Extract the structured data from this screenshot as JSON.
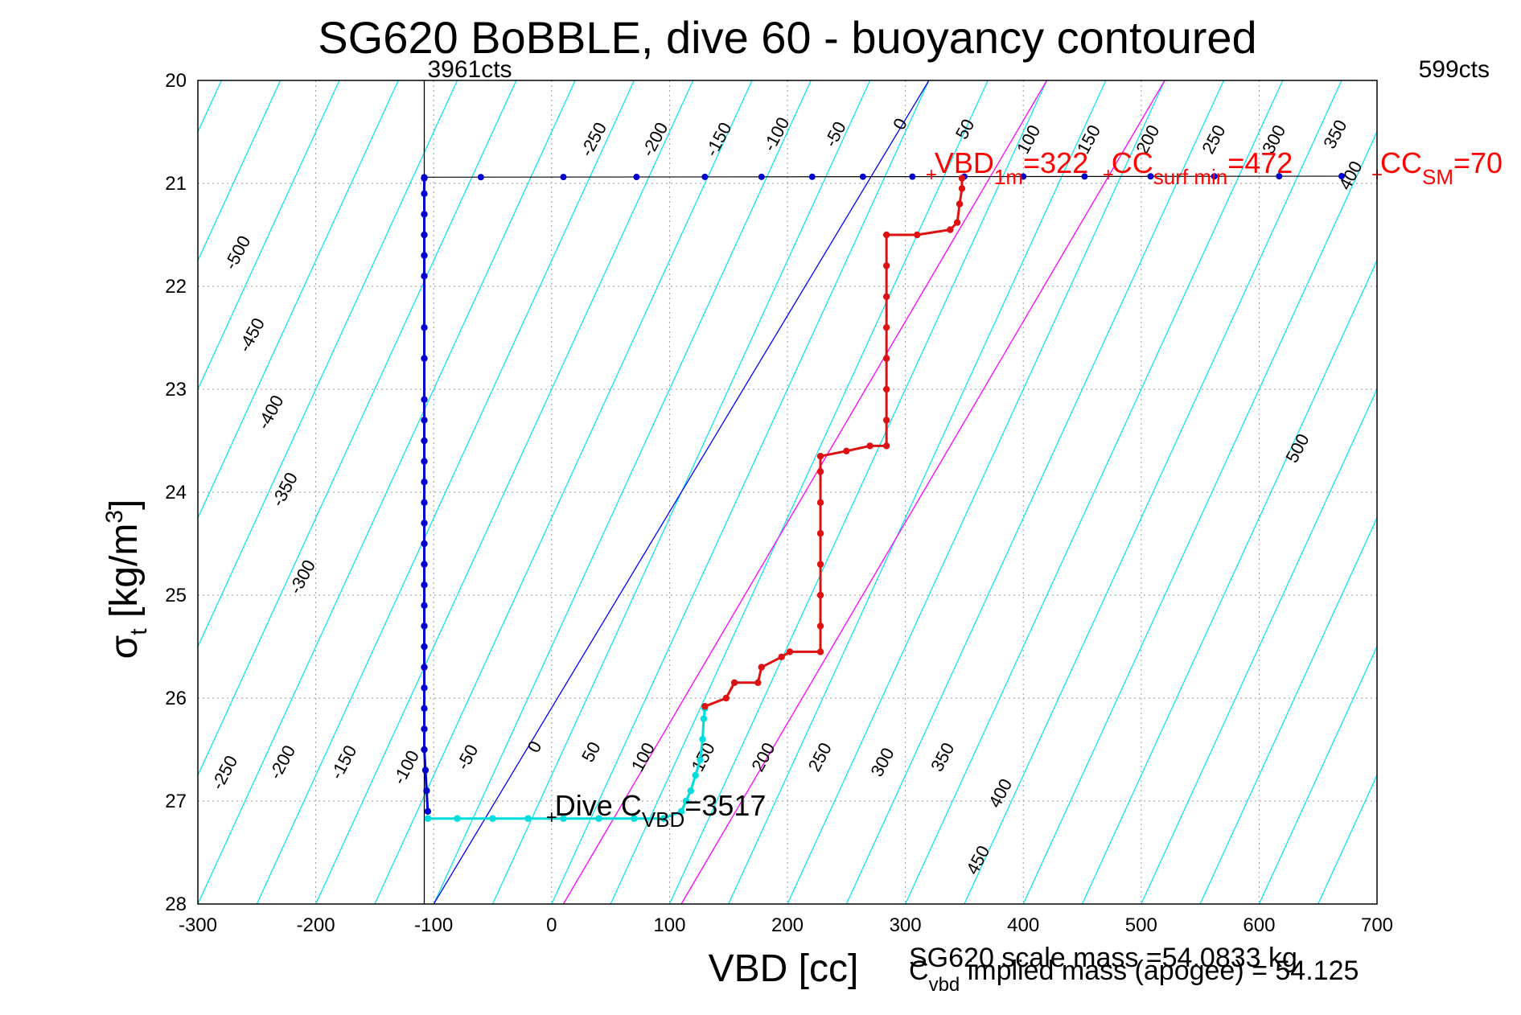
{
  "chart_data": {
    "type": "scatter",
    "title": "SG620 BoBBLE, dive 60 - buoyancy contoured",
    "xlabel": "VBD [cc]",
    "ylabel": "σ",
    "ylabel_sub": "t",
    "ylabel_units": " [kg/m",
    "ylabel_sup": "3",
    "ylabel_close": "]",
    "xlim": [
      -300,
      700
    ],
    "ylim": [
      20,
      28
    ],
    "y_reversed": true,
    "grid": true,
    "x_ticks": [
      -300,
      -200,
      -100,
      0,
      100,
      200,
      300,
      400,
      500,
      600,
      700
    ],
    "y_ticks": [
      20,
      21,
      22,
      23,
      24,
      25,
      26,
      27,
      28
    ],
    "x_tick_labels": [
      "-300",
      "-200",
      "-100",
      "0",
      "100",
      "200",
      "300",
      "400",
      "500",
      "600",
      "700"
    ],
    "y_tick_labels": [
      "20",
      "21",
      "22",
      "23",
      "24",
      "25",
      "26",
      "27",
      "28"
    ],
    "contours": {
      "slope_cc_per_sigma": 40,
      "color": "#00e5ee",
      "values": [
        -500,
        -450,
        -400,
        -350,
        -300,
        -250,
        -200,
        -150,
        -100,
        -50,
        0,
        50,
        100,
        150,
        200,
        250,
        300,
        350,
        400,
        450,
        500
      ],
      "top_labels": [
        {
          "text": "-250",
          "x": 40,
          "y": 20.6
        },
        {
          "text": "-200",
          "x": 92,
          "y": 20.6
        },
        {
          "text": "-150",
          "x": 146,
          "y": 20.6
        },
        {
          "text": "-100",
          "x": 195,
          "y": 20.55
        },
        {
          "text": "-50",
          "x": 245,
          "y": 20.55
        },
        {
          "text": "0",
          "x": 300,
          "y": 20.45
        },
        {
          "text": "50",
          "x": 355,
          "y": 20.5
        },
        {
          "text": "100",
          "x": 409,
          "y": 20.6
        },
        {
          "text": "150",
          "x": 460,
          "y": 20.6
        },
        {
          "text": "200",
          "x": 510,
          "y": 20.6
        },
        {
          "text": "250",
          "x": 566,
          "y": 20.6
        },
        {
          "text": "300",
          "x": 617,
          "y": 20.6
        },
        {
          "text": "350",
          "x": 669,
          "y": 20.55
        },
        {
          "text": "400",
          "x": 682,
          "y": 20.95
        }
      ],
      "left_labels": [
        {
          "text": "-500",
          "x": -262,
          "y": 21.7
        },
        {
          "text": "-450",
          "x": -250,
          "y": 22.5
        },
        {
          "text": "-400",
          "x": -234,
          "y": 23.25
        },
        {
          "text": "-350",
          "x": -222,
          "y": 24.0
        },
        {
          "text": "-300",
          "x": -207,
          "y": 24.85
        }
      ],
      "bottom_labels": [
        {
          "text": "-250",
          "x": -273,
          "y": 26.75
        },
        {
          "text": "-200",
          "x": -224,
          "y": 26.65
        },
        {
          "text": "-150",
          "x": -172,
          "y": 26.65
        },
        {
          "text": "-100",
          "x": -119,
          "y": 26.7
        },
        {
          "text": "-50",
          "x": -67,
          "y": 26.6
        },
        {
          "text": "0",
          "x": -10,
          "y": 26.5
        },
        {
          "text": "50",
          "x": 38,
          "y": 26.55
        },
        {
          "text": "100",
          "x": 82,
          "y": 26.6
        },
        {
          "text": "150",
          "x": 133,
          "y": 26.6
        },
        {
          "text": "200",
          "x": 184,
          "y": 26.6
        },
        {
          "text": "250",
          "x": 232,
          "y": 26.6
        },
        {
          "text": "300",
          "x": 285,
          "y": 26.65
        },
        {
          "text": "350",
          "x": 336,
          "y": 26.6
        },
        {
          "text": "400",
          "x": 385,
          "y": 26.95
        },
        {
          "text": "450",
          "x": 366,
          "y": 27.6
        },
        {
          "text": "500",
          "x": 637,
          "y": 23.6
        }
      ]
    },
    "reference_lines": [
      {
        "name": "",
        "color": "#0000ff",
        "points": [
          [
            -100,
            28
          ],
          [
            320,
            20
          ]
        ]
      },
      {
        "name": "",
        "color": "#ff00ff",
        "points": [
          [
            10,
            28
          ],
          [
            420,
            20
          ]
        ]
      },
      {
        "name": "",
        "color": "#ff00ff",
        "points": [
          [
            110,
            28
          ],
          [
            520,
            20
          ]
        ]
      }
    ],
    "vertical_line": {
      "x": -108,
      "color": "#000000"
    },
    "surface_line": {
      "color": "#000000",
      "points": [
        [
          -108,
          20.94
        ],
        [
          670,
          20.93
        ]
      ],
      "markers": [
        -108,
        -60,
        10,
        72,
        130,
        178,
        221,
        264,
        306,
        350,
        400,
        452,
        508,
        562,
        617,
        670
      ]
    },
    "markers": [
      {
        "label": "3961cts",
        "x": -108,
        "y": 20.0
      },
      {
        "label": "599cts",
        "x": 690,
        "y": 20.0
      }
    ],
    "series": [
      {
        "segment": "dive",
        "color": "#0000cc",
        "points": [
          [
            -108,
            20.95
          ],
          [
            -108,
            21.1
          ],
          [
            -108,
            21.3
          ],
          [
            -108,
            21.5
          ],
          [
            -108,
            21.7
          ],
          [
            -108,
            21.9
          ],
          [
            -108,
            22.4
          ],
          [
            -108,
            22.7
          ],
          [
            -108,
            23.1
          ],
          [
            -108,
            23.3
          ],
          [
            -108,
            23.5
          ],
          [
            -108,
            23.7
          ],
          [
            -108,
            23.9
          ],
          [
            -108,
            24.1
          ],
          [
            -108,
            24.3
          ],
          [
            -108,
            24.5
          ],
          [
            -108,
            24.7
          ],
          [
            -108,
            24.9
          ],
          [
            -108,
            25.1
          ],
          [
            -108,
            25.3
          ],
          [
            -108,
            25.5
          ],
          [
            -108,
            25.7
          ],
          [
            -108,
            25.9
          ],
          [
            -108,
            26.1
          ],
          [
            -108,
            26.3
          ],
          [
            -108,
            26.5
          ],
          [
            -107,
            26.7
          ],
          [
            -106,
            26.9
          ],
          [
            -105,
            27.1
          ]
        ]
      },
      {
        "segment": "bottom",
        "color": "#00dddd",
        "points": [
          [
            -105,
            27.17
          ],
          [
            -80,
            27.17
          ],
          [
            -50,
            27.17
          ],
          [
            -20,
            27.17
          ],
          [
            10,
            27.17
          ],
          [
            40,
            27.17
          ],
          [
            70,
            27.17
          ],
          [
            95,
            27.17
          ],
          [
            110,
            27.1
          ],
          [
            114,
            27.0
          ],
          [
            118,
            26.9
          ],
          [
            122,
            26.75
          ],
          [
            126,
            26.6
          ],
          [
            128,
            26.4
          ],
          [
            129,
            26.2
          ],
          [
            130,
            26.1
          ]
        ]
      },
      {
        "segment": "climb",
        "color": "#dd1111",
        "points": [
          [
            130,
            26.08
          ],
          [
            148,
            26.0
          ],
          [
            155,
            25.85
          ],
          [
            175,
            25.85
          ],
          [
            178,
            25.7
          ],
          [
            195,
            25.6
          ],
          [
            202,
            25.55
          ],
          [
            228,
            25.55
          ],
          [
            228,
            25.3
          ],
          [
            228,
            25.0
          ],
          [
            228,
            24.7
          ],
          [
            228,
            24.4
          ],
          [
            228,
            24.1
          ],
          [
            228,
            23.8
          ],
          [
            228,
            23.65
          ],
          [
            250,
            23.6
          ],
          [
            270,
            23.55
          ],
          [
            284,
            23.55
          ],
          [
            284,
            23.3
          ],
          [
            284,
            23.0
          ],
          [
            284,
            22.7
          ],
          [
            284,
            22.4
          ],
          [
            284,
            22.1
          ],
          [
            284,
            21.8
          ],
          [
            284,
            21.5
          ],
          [
            310,
            21.5
          ],
          [
            338,
            21.45
          ],
          [
            344,
            21.38
          ],
          [
            346,
            21.2
          ],
          [
            348,
            21.05
          ],
          [
            348,
            20.95
          ]
        ]
      }
    ],
    "annotations": [
      {
        "text": "VBD",
        "sub": "1m",
        "suffix": "=322",
        "x": 322,
        "y": 20.93,
        "color": "#ff0000"
      },
      {
        "text": "CC",
        "sub": "surf min",
        "suffix": "=472",
        "x": 472,
        "y": 20.93,
        "color": "#ff0000"
      },
      {
        "text": "CC",
        "sub": "SM",
        "suffix": "=70",
        "x": 700,
        "y": 20.93,
        "color": "#ff0000"
      },
      {
        "text": "Dive C",
        "sub": "VBD",
        "suffix": "=3517",
        "x": 0,
        "y": 27.17,
        "color": "#000000"
      }
    ],
    "footer": {
      "line1": "SG620 scale mass =54.0833 kg",
      "line2_prefix": "C",
      "line2_sub": "vbd",
      "line2_suffix": " implied mass (apogee) = 54.125"
    }
  }
}
